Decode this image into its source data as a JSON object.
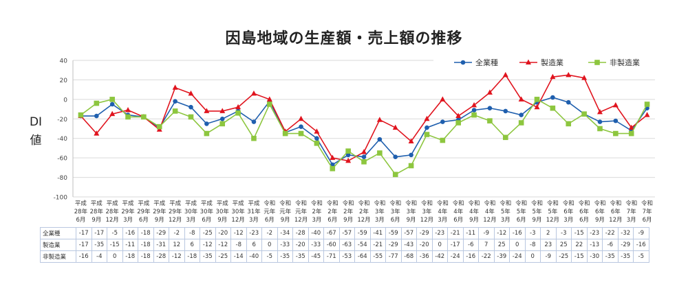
{
  "title": "因島地域の生産額・売上額の推移",
  "ylabel": "DI値",
  "chart_data": {
    "type": "line",
    "ylim": [
      -100,
      40
    ],
    "yticks": [
      40,
      20,
      0,
      -20,
      -40,
      -60,
      -80,
      -100
    ],
    "grid": true,
    "legend_position": "top-right",
    "categories": [
      [
        "平成",
        "28年",
        "6月"
      ],
      [
        "平成",
        "28年",
        "9月"
      ],
      [
        "平成",
        "28年",
        "12月"
      ],
      [
        "平成",
        "29年",
        "3月"
      ],
      [
        "平成",
        "29年",
        "6月"
      ],
      [
        "平成",
        "29年",
        "9月"
      ],
      [
        "平成",
        "29年",
        "12月"
      ],
      [
        "平成",
        "30年",
        "3月"
      ],
      [
        "平成",
        "30年",
        "6月"
      ],
      [
        "平成",
        "30年",
        "9月"
      ],
      [
        "平成",
        "30年",
        "12月"
      ],
      [
        "平成",
        "31年",
        "3月"
      ],
      [
        "令和",
        "元年",
        "6月"
      ],
      [
        "令和",
        "元年",
        "9月"
      ],
      [
        "令和",
        "元年",
        "12月"
      ],
      [
        "令和",
        "2年",
        "3月"
      ],
      [
        "令和",
        "2年",
        "6月"
      ],
      [
        "令和",
        "2年",
        "9月"
      ],
      [
        "令和",
        "2年",
        "12月"
      ],
      [
        "令和",
        "3年",
        "3月"
      ],
      [
        "令和",
        "3年",
        "6月"
      ],
      [
        "令和",
        "3年",
        "9月"
      ],
      [
        "令和",
        "3年",
        "12月"
      ],
      [
        "令和",
        "4年",
        "3月"
      ],
      [
        "令和",
        "4年",
        "6月"
      ],
      [
        "令和",
        "4年",
        "9月"
      ],
      [
        "令和",
        "4年",
        "12月"
      ],
      [
        "令和",
        "5年",
        "3月"
      ],
      [
        "令和",
        "5年",
        "6月"
      ],
      [
        "令和",
        "5年",
        "9月"
      ],
      [
        "令和",
        "5年",
        "12月"
      ],
      [
        "令和",
        "6年",
        "3月"
      ],
      [
        "令和",
        "6年",
        "6月"
      ],
      [
        "令和",
        "6年",
        "9月"
      ],
      [
        "令和",
        "6年",
        "12月"
      ],
      [
        "令和",
        "7年",
        "3月"
      ],
      [
        "令和",
        "7年",
        "6月"
      ]
    ],
    "series": [
      {
        "name": "全業種",
        "color": "#1f5fae",
        "marker": "circle",
        "values": [
          -17,
          -17,
          -5,
          -16,
          -18,
          -29,
          -2,
          -8,
          -25,
          -20,
          -12,
          -23,
          -2,
          -34,
          -28,
          -40,
          -67,
          -57,
          -59,
          -41,
          -59,
          -57,
          -29,
          -23,
          -21,
          -11,
          -9,
          -12,
          -16,
          -3,
          2,
          -3,
          -15,
          -23,
          -22,
          -32,
          -9
        ]
      },
      {
        "name": "製造業",
        "color": "#e0141e",
        "marker": "triangle",
        "values": [
          -17,
          -35,
          -15,
          -11,
          -18,
          -31,
          12,
          6,
          -12,
          -12,
          -8,
          6,
          0,
          -33,
          -20,
          -33,
          -60,
          -63,
          -54,
          -21,
          -29,
          -43,
          -20,
          0,
          -17,
          -6,
          7,
          25,
          0,
          -8,
          23,
          25,
          22,
          -13,
          -6,
          -29,
          -16
        ]
      },
      {
        "name": "非製造業",
        "color": "#8dc63f",
        "marker": "square",
        "values": [
          -16,
          -4,
          0,
          -18,
          -18,
          -28,
          -12,
          -18,
          -35,
          -25,
          -14,
          -40,
          -5,
          -35,
          -35,
          -45,
          -71,
          -53,
          -64,
          -55,
          -77,
          -68,
          -36,
          -42,
          -24,
          -16,
          -22,
          -39,
          -24,
          0,
          -9,
          -25,
          -15,
          -30,
          -35,
          -35,
          -5
        ]
      }
    ]
  }
}
